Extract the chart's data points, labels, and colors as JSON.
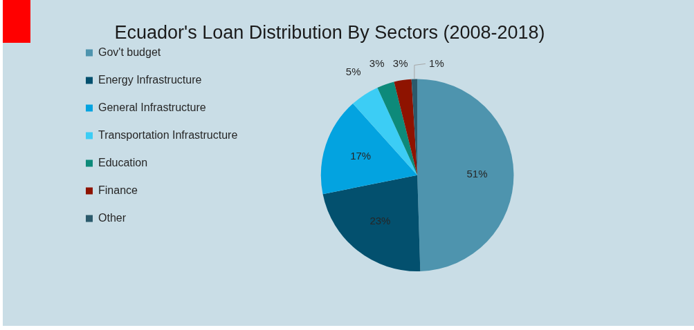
{
  "chart_data": {
    "type": "pie",
    "title": "Ecuador's Loan Distribution By Sectors (2008-2018)",
    "categories": [
      "Gov't budget",
      "Energy Infrastructure",
      "General Infrastructure",
      "Transportation Infrastructure",
      "Education",
      "Finance",
      "Other"
    ],
    "values": [
      51,
      23,
      17,
      5,
      3,
      3,
      1
    ],
    "colors": [
      "#4e94ae",
      "#03506e",
      "#03a3e0",
      "#3ccdf5",
      "#0d8a7a",
      "#8e1300",
      "#2b5a6c"
    ],
    "value_labels": [
      "51%",
      "23%",
      "17%",
      "5%",
      "3%",
      "3%",
      "1%"
    ],
    "legend": "left"
  }
}
